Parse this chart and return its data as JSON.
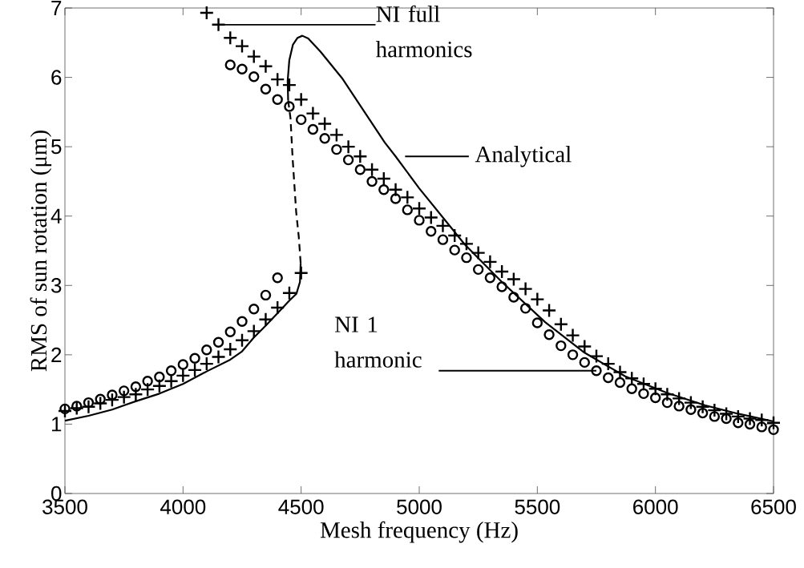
{
  "chart_data": {
    "type": "scatter",
    "xlabel": "Mesh frequency (Hz)",
    "ylabel": "RMS of sun rotation (μm)",
    "xlim": [
      3500,
      6500
    ],
    "ylim": [
      0,
      7
    ],
    "xticks": [
      3500,
      4000,
      4500,
      5000,
      5500,
      6000,
      6500
    ],
    "yticks": [
      0,
      1,
      2,
      3,
      4,
      5,
      6,
      7
    ],
    "series": [
      {
        "marker": "circle",
        "color": "#000000",
        "x": [
          3500,
          3550,
          3600,
          3650,
          3700,
          3750,
          3800,
          3850,
          3900,
          3950,
          4000,
          4050,
          4100,
          4150,
          4200,
          4250,
          4300,
          4350,
          4400,
          4200,
          4250,
          4300,
          4350,
          4400,
          4450,
          4500,
          4550,
          4600,
          4650,
          4700,
          4750,
          4800,
          4850,
          4900,
          4950,
          5000,
          5050,
          5100,
          5150,
          5200,
          5250,
          5300,
          5350,
          5400,
          5450,
          5500,
          5550,
          5600,
          5650,
          5700,
          5750,
          5800,
          5850,
          5900,
          5950,
          6000,
          6050,
          6100,
          6150,
          6200,
          6250,
          6300,
          6350,
          6400,
          6450,
          6500
        ],
        "values": [
          1.22,
          1.26,
          1.31,
          1.36,
          1.42,
          1.48,
          1.54,
          1.62,
          1.68,
          1.77,
          1.86,
          1.95,
          2.07,
          2.18,
          2.33,
          2.48,
          2.66,
          2.86,
          3.11,
          6.18,
          6.12,
          6.01,
          5.83,
          5.68,
          5.58,
          5.39,
          5.25,
          5.12,
          4.96,
          4.81,
          4.67,
          4.5,
          4.38,
          4.25,
          4.09,
          3.94,
          3.78,
          3.66,
          3.51,
          3.4,
          3.23,
          3.11,
          2.98,
          2.83,
          2.67,
          2.46,
          2.29,
          2.13,
          2.0,
          1.89,
          1.77,
          1.67,
          1.6,
          1.51,
          1.44,
          1.38,
          1.31,
          1.26,
          1.21,
          1.16,
          1.11,
          1.08,
          1.02,
          1.0,
          0.96,
          0.92
        ]
      },
      {
        "marker": "cross",
        "color": "#000000",
        "x": [
          3500,
          3550,
          3600,
          3650,
          3700,
          3750,
          3800,
          3850,
          3900,
          3950,
          4000,
          4050,
          4100,
          4150,
          4200,
          4250,
          4300,
          4350,
          4400,
          4450,
          4500,
          4100,
          4150,
          4200,
          4250,
          4300,
          4350,
          4400,
          4450,
          4500,
          4550,
          4600,
          4650,
          4700,
          4750,
          4800,
          4850,
          4900,
          4950,
          5000,
          5050,
          5100,
          5150,
          5200,
          5250,
          5300,
          5350,
          5400,
          5450,
          5500,
          5550,
          5600,
          5650,
          5700,
          5750,
          5800,
          5850,
          5900,
          5950,
          6000,
          6050,
          6100,
          6150,
          6200,
          6250,
          6300,
          6350,
          6400,
          6450,
          6500
        ],
        "values": [
          1.19,
          1.23,
          1.25,
          1.3,
          1.35,
          1.39,
          1.43,
          1.5,
          1.55,
          1.62,
          1.7,
          1.78,
          1.87,
          1.97,
          2.08,
          2.21,
          2.34,
          2.51,
          2.68,
          2.89,
          3.18,
          6.93,
          6.76,
          6.57,
          6.45,
          6.3,
          6.16,
          5.97,
          5.89,
          5.68,
          5.48,
          5.33,
          5.17,
          5.0,
          4.86,
          4.67,
          4.54,
          4.38,
          4.27,
          4.11,
          3.98,
          3.86,
          3.72,
          3.6,
          3.47,
          3.34,
          3.2,
          3.09,
          2.95,
          2.8,
          2.64,
          2.44,
          2.28,
          2.12,
          1.98,
          1.87,
          1.75,
          1.66,
          1.58,
          1.51,
          1.43,
          1.37,
          1.31,
          1.25,
          1.2,
          1.15,
          1.11,
          1.08,
          1.06,
          1.02
        ]
      },
      {
        "type": "line",
        "line_style": "solid",
        "color": "#000000",
        "x": [
          3500,
          3600,
          3700,
          3750,
          3800,
          3900,
          4000,
          4100,
          4200,
          4250,
          4300,
          4350,
          4400,
          4450,
          4480,
          4495,
          4498
        ],
        "values": [
          1.05,
          1.12,
          1.21,
          1.27,
          1.33,
          1.44,
          1.58,
          1.76,
          1.93,
          2.05,
          2.25,
          2.42,
          2.6,
          2.78,
          2.88,
          3.05,
          3.32
        ]
      },
      {
        "type": "line",
        "line_style": "solid",
        "color": "#000000",
        "x": [
          4445,
          4443,
          4450,
          4465,
          4485,
          4505,
          4530,
          4582,
          4673,
          4786,
          4854,
          4900,
          5000,
          5193,
          5350,
          5533,
          5700,
          5872,
          6050,
          6211,
          6350,
          6500
        ],
        "values": [
          5.67,
          5.95,
          6.25,
          6.47,
          6.57,
          6.6,
          6.56,
          6.37,
          5.99,
          5.41,
          5.06,
          4.86,
          4.4,
          3.59,
          3.05,
          2.47,
          2.03,
          1.69,
          1.45,
          1.27,
          1.15,
          1.04
        ]
      },
      {
        "type": "line",
        "line_style": "dashed",
        "color": "#000000",
        "x": [
          4498,
          4490,
          4479,
          4464,
          4455,
          4445
        ],
        "values": [
          3.32,
          3.7,
          4.06,
          4.83,
          5.41,
          5.67
        ]
      }
    ],
    "annotations": [
      {
        "text": "NI full harmonics",
        "x": 4150,
        "y": 6.76
      },
      "Analytical",
      {
        "text": "NI 1 harmonic",
        "x": 5750,
        "y": 1.77
      }
    ]
  }
}
